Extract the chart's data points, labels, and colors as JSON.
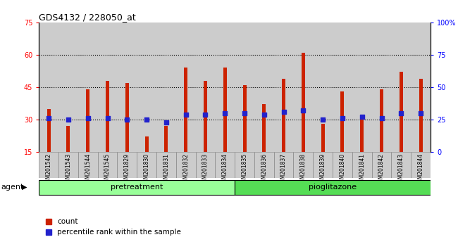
{
  "title": "GDS4132 / 228050_at",
  "categories": [
    "GSM201542",
    "GSM201543",
    "GSM201544",
    "GSM201545",
    "GSM201829",
    "GSM201830",
    "GSM201831",
    "GSM201832",
    "GSM201833",
    "GSM201834",
    "GSM201835",
    "GSM201836",
    "GSM201837",
    "GSM201838",
    "GSM201839",
    "GSM201840",
    "GSM201841",
    "GSM201842",
    "GSM201843",
    "GSM201844"
  ],
  "count_values": [
    35,
    27,
    44,
    48,
    47,
    22,
    27,
    54,
    48,
    54,
    46,
    37,
    49,
    61,
    28,
    43,
    32,
    44,
    52,
    49
  ],
  "percentile_values": [
    26,
    25,
    26,
    26,
    25,
    25,
    23,
    29,
    29,
    30,
    30,
    29,
    31,
    32,
    25,
    26,
    27,
    26,
    30,
    30
  ],
  "bar_color": "#cc2200",
  "dot_color": "#2222cc",
  "ylim_left": [
    15,
    75
  ],
  "ylim_right": [
    0,
    100
  ],
  "yticks_left": [
    15,
    30,
    45,
    60,
    75
  ],
  "yticks_right": [
    0,
    25,
    50,
    75,
    100
  ],
  "yticklabels_right": [
    "0",
    "25",
    "50",
    "75",
    "100%"
  ],
  "gridline_values": [
    30,
    45,
    60
  ],
  "pretreatment_group": [
    0,
    9
  ],
  "pioglitazone_group": [
    10,
    19
  ],
  "pretreatment_label": "pretreatment",
  "pioglitazone_label": "pioglitazone",
  "agent_label": "agent",
  "legend_count": "count",
  "legend_percentile": "percentile rank within the sample",
  "bg_color": "#cccccc",
  "pretreatment_color": "#99ff99",
  "pioglitazone_color": "#55dd55",
  "bar_width": 0.18
}
